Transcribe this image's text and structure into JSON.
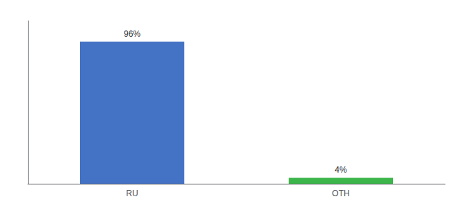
{
  "chart_data": {
    "type": "bar",
    "categories": [
      "RU",
      "OTH"
    ],
    "values": [
      96,
      4
    ],
    "value_labels": [
      "96%",
      "4%"
    ],
    "colors": [
      "#4472c4",
      "#3cb54a"
    ],
    "ylim": [
      0,
      110
    ],
    "tick_labels": "x",
    "data_labels": true,
    "grid": false
  }
}
